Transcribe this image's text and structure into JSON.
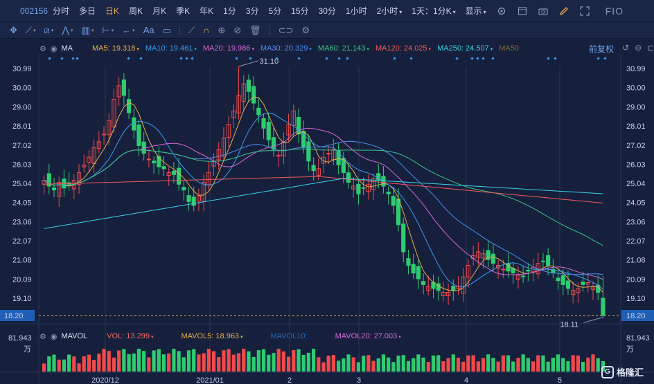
{
  "header": {
    "code": "002156",
    "periods": [
      "分时",
      "多日",
      "日K",
      "周K",
      "月K",
      "季K",
      "年K",
      "1分",
      "3分",
      "5分",
      "15分",
      "30分",
      "1小时",
      "2小时",
      "1天：1分K",
      "显示"
    ],
    "active_period": "日K",
    "fio": "FIO"
  },
  "drawbar": {
    "font_label": "Aa"
  },
  "ma_legend": {
    "label": "MA",
    "items": [
      {
        "text": "MA5: 19.318",
        "color": "#e8b04a"
      },
      {
        "text": "MA10: 19.461",
        "color": "#3a9bf0"
      },
      {
        "text": "MA20: 19.986",
        "color": "#d86ad8"
      },
      {
        "text": "MA30: 20.329",
        "color": "#4f8ef0"
      },
      {
        "text": "MA60: 21.143",
        "color": "#3cc48c"
      },
      {
        "text": "MA120: 24.025",
        "color": "#f05a5a"
      },
      {
        "text": "MA250: 24.507",
        "color": "#3ad0e8"
      },
      {
        "text": "MA50",
        "color": "#8a6a3a"
      }
    ],
    "adjust": "前复权"
  },
  "vol_legend": {
    "label": "MAVOL",
    "items": [
      {
        "text": "VOL: 13.299",
        "color": "#f06a6a"
      },
      {
        "text": "MAVOL5: 18.963",
        "color": "#e8b04a"
      },
      {
        "text": "MAVOL10:",
        "color": "#2a6ab0"
      },
      {
        "text": "MAVOL20: 27.003",
        "color": "#d86ad8"
      }
    ]
  },
  "price_axis": [
    "30.99",
    "30.00",
    "29.00",
    "28.01",
    "27.02",
    "26.03",
    "25.04",
    "24.05",
    "23.06",
    "22.07",
    "21.08",
    "20.09",
    "19.10"
  ],
  "current_price": "18.20",
  "high_marker": "31.10",
  "low_marker": "18.11",
  "vol_axis": {
    "top": "81.943",
    "unit": "万"
  },
  "date_axis": [
    "2020/12",
    "2021/01",
    "2",
    "3",
    "4",
    "5"
  ],
  "logo": "格隆汇",
  "chart_data": {
    "type": "candlestick",
    "y_range": [
      18.2,
      31.1
    ],
    "closes": [
      25.2,
      24.9,
      24.7,
      25.1,
      24.8,
      25.0,
      25.2,
      25.6,
      26.0,
      26.4,
      26.9,
      27.2,
      27.6,
      28.3,
      29.4,
      30.1,
      29.6,
      28.7,
      27.8,
      27.0,
      26.6,
      26.3,
      26.1,
      25.9,
      25.8,
      25.6,
      25.5,
      25.0,
      24.7,
      24.1,
      23.9,
      24.4,
      25.1,
      25.6,
      26.2,
      26.8,
      27.4,
      28.1,
      28.8,
      29.6,
      30.2,
      29.8,
      29.2,
      28.6,
      27.9,
      27.3,
      26.8,
      26.5,
      27.2,
      28.1,
      28.8,
      27.6,
      26.9,
      26.2,
      25.7,
      25.8,
      26.4,
      26.6,
      26.8,
      26.0,
      25.6,
      25.1,
      24.9,
      24.5,
      24.8,
      25.0,
      25.3,
      25.2,
      24.9,
      24.5,
      23.9,
      22.9,
      21.5,
      20.8,
      20.4,
      20.1,
      19.8,
      19.7,
      19.6,
      19.5,
      19.4,
      19.4,
      19.5,
      19.7,
      20.2,
      20.8,
      21.3,
      21.5,
      21.4,
      21.1,
      20.9,
      20.8,
      20.6,
      20.5,
      20.4,
      20.3,
      20.2,
      20.5,
      20.7,
      20.9,
      21.0,
      20.8,
      20.4,
      20.0,
      19.8,
      19.6,
      19.5,
      19.6,
      19.8,
      19.9,
      19.7,
      19.4,
      18.2
    ],
    "ma5_last": 19.318,
    "ma10_last": 19.461,
    "ma20_last": 19.986,
    "ma30_last": 20.329,
    "ma60_last": 21.143,
    "ma120_last": 24.025,
    "ma250_last": 24.507
  }
}
